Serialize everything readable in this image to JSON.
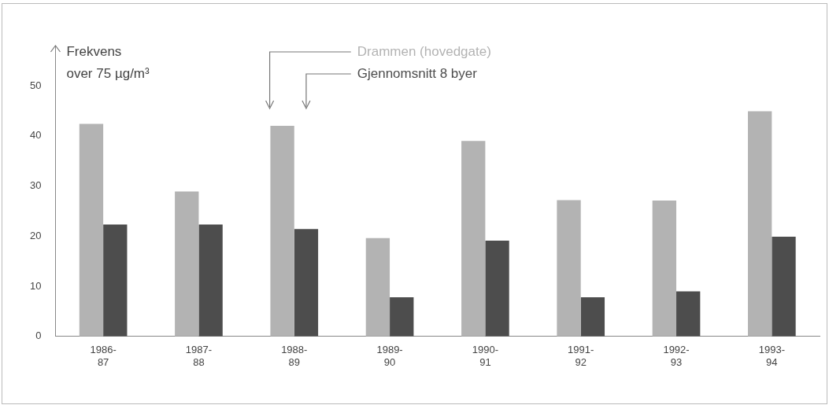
{
  "chart_data": {
    "type": "bar",
    "ylabel": "Frekvens\nover 75 µg/m³",
    "categories": [
      "1986-87",
      "1987-88",
      "1988-89",
      "1989-90",
      "1990-91",
      "1991-92",
      "1992-93",
      "1993-94"
    ],
    "series": [
      {
        "name": "Drammen (hovedgate)",
        "color": "#b3b3b3",
        "values": [
          42.4,
          28.9,
          42,
          19.6,
          39,
          27.2,
          27.1,
          44.9
        ]
      },
      {
        "name": "Gjennomsnitt 8 byer",
        "color": "#4d4d4d",
        "values": [
          22.3,
          22.3,
          21.4,
          7.8,
          19.1,
          7.8,
          9,
          19.9
        ]
      }
    ],
    "ylim": [
      0,
      58
    ],
    "yticks": [
      0,
      10,
      20,
      30,
      40,
      50
    ],
    "grid": false
  }
}
